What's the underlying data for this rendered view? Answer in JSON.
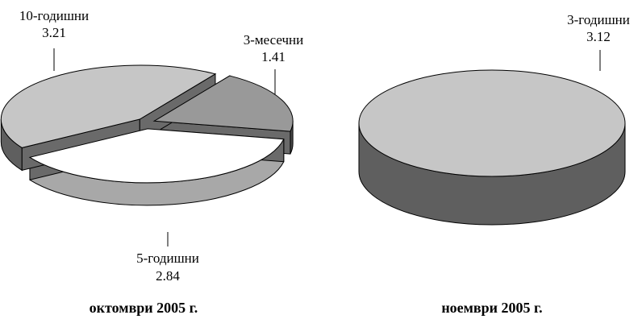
{
  "chart_data": [
    {
      "type": "pie",
      "style": "3d-exploded",
      "caption": "октомври 2005 г.",
      "slices": [
        {
          "label": "10-годишни",
          "value": 3.21,
          "value_text": "3.21",
          "color": "#c6c6c6"
        },
        {
          "label": "3-месечни",
          "value": 1.41,
          "value_text": "1.41",
          "color": "#999999"
        },
        {
          "label": "5-годишни",
          "value": 2.84,
          "value_text": "2.84",
          "color": "#ffffff"
        }
      ]
    },
    {
      "type": "pie",
      "style": "3d",
      "caption": "ноември 2005 г.",
      "slices": [
        {
          "label": "3-годишни",
          "value": 3.12,
          "value_text": "3.12",
          "color": "#c6c6c6"
        }
      ]
    }
  ]
}
